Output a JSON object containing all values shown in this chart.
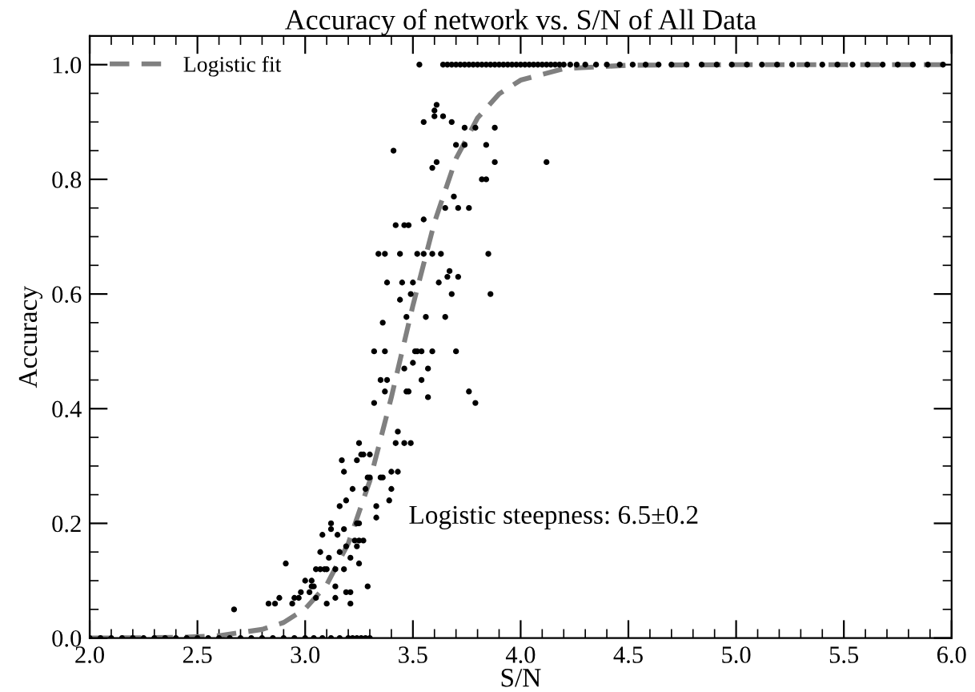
{
  "chart_data": {
    "type": "scatter",
    "title": "Accuracy of network vs. S/N of All Data",
    "xlabel": "S/N",
    "ylabel": "Accuracy",
    "xlim": [
      2.0,
      6.0
    ],
    "ylim": [
      0.0,
      1.05
    ],
    "xticks": [
      {
        "value": 2.0,
        "label": "2.0"
      },
      {
        "value": 2.5,
        "label": "2.5"
      },
      {
        "value": 3.0,
        "label": "3.0"
      },
      {
        "value": 3.5,
        "label": "3.5"
      },
      {
        "value": 4.0,
        "label": "4.0"
      },
      {
        "value": 4.5,
        "label": "4.5"
      },
      {
        "value": 5.0,
        "label": "5.0"
      },
      {
        "value": 5.5,
        "label": "5.5"
      },
      {
        "value": 6.0,
        "label": "6.0"
      }
    ],
    "yticks": [
      {
        "value": 0.0,
        "label": "0.0"
      },
      {
        "value": 0.2,
        "label": "0.2"
      },
      {
        "value": 0.4,
        "label": "0.4"
      },
      {
        "value": 0.6,
        "label": "0.6"
      },
      {
        "value": 0.8,
        "label": "0.8"
      },
      {
        "value": 1.0,
        "label": "1.0"
      }
    ],
    "grid": false,
    "legend": "top left",
    "annotations": [
      "Logistic steepness: 6.5±0.2"
    ],
    "series": [
      {
        "color": "#000000",
        "marker": "circle",
        "x": [
          3.53,
          3.61,
          3.6,
          3.6,
          3.64,
          3.55,
          3.68,
          3.74,
          3.79,
          3.88,
          3.7,
          3.74,
          3.84,
          3.41,
          3.61,
          3.59,
          3.88,
          4.12,
          3.82,
          3.84,
          3.69,
          3.65,
          3.71,
          3.76,
          3.55,
          3.42,
          3.46,
          3.48,
          3.34,
          3.37,
          3.44,
          3.52,
          3.55,
          3.59,
          3.63,
          3.85,
          3.67,
          3.66,
          3.71,
          3.38,
          3.45,
          3.5,
          3.62,
          3.49,
          3.68,
          3.86,
          3.44,
          3.36,
          3.47,
          3.56,
          3.65,
          3.32,
          3.37,
          3.51,
          3.52,
          3.54,
          3.59,
          3.7,
          3.5,
          3.57,
          3.35,
          3.38,
          3.46,
          3.54,
          3.47,
          3.48,
          3.76,
          3.37,
          3.57,
          3.32,
          3.79,
          3.43,
          3.42,
          3.46,
          3.49,
          3.25,
          3.27,
          3.26,
          3.3,
          3.24,
          3.4,
          3.43,
          3.29,
          3.3,
          3.35,
          3.36,
          3.22,
          3.4,
          3.28,
          3.33,
          3.39,
          3.33,
          3.24,
          3.25,
          3.23,
          3.25,
          3.27,
          3.24,
          3.21,
          3.25,
          3.21,
          3.29,
          3.21,
          2.67,
          2.83,
          2.86,
          2.88,
          2.91,
          2.94,
          2.95,
          2.97,
          2.98,
          3.0,
          3.02,
          3.03,
          3.03,
          3.04,
          3.05,
          3.05,
          3.07,
          3.07,
          3.09,
          3.1,
          3.08,
          3.1,
          3.11,
          3.12,
          3.12,
          3.14,
          3.14,
          3.14,
          3.15,
          3.16,
          3.16,
          3.17,
          3.18,
          3.18,
          3.18,
          3.19,
          3.19,
          3.19,
          3.64,
          3.66,
          3.68,
          3.7,
          3.72,
          3.74,
          3.76,
          3.78,
          3.8,
          3.82,
          3.84,
          3.86,
          3.88,
          3.9,
          3.92,
          3.94,
          3.96,
          3.98,
          4.0,
          4.02,
          4.04,
          4.06,
          4.08,
          4.1,
          4.12,
          4.14,
          4.16,
          4.18,
          4.2,
          4.23,
          4.26,
          4.3,
          4.35,
          4.4,
          4.46,
          4.52,
          4.58,
          4.64,
          4.7,
          4.77,
          4.84,
          4.91,
          4.98,
          5.05,
          5.12,
          5.19,
          5.26,
          5.33,
          5.4,
          5.47,
          5.54,
          5.61,
          5.68,
          5.75,
          5.82,
          5.89,
          5.96,
          2.0,
          2.05,
          2.1,
          2.15,
          2.2,
          2.25,
          2.3,
          2.35,
          2.4,
          2.45,
          2.5,
          2.55,
          2.6,
          2.65,
          2.7,
          2.75,
          2.8,
          2.85,
          2.9,
          2.95,
          3.0,
          3.04,
          3.08,
          3.12,
          3.16,
          3.2,
          3.22,
          3.24,
          3.26,
          3.28,
          3.3
        ],
        "values": [
          1.0,
          0.93,
          0.92,
          0.91,
          0.91,
          0.9,
          0.9,
          0.89,
          0.89,
          0.89,
          0.86,
          0.86,
          0.86,
          0.85,
          0.83,
          0.82,
          0.83,
          0.83,
          0.8,
          0.8,
          0.77,
          0.75,
          0.75,
          0.75,
          0.73,
          0.72,
          0.72,
          0.72,
          0.67,
          0.67,
          0.67,
          0.67,
          0.67,
          0.67,
          0.67,
          0.67,
          0.64,
          0.63,
          0.63,
          0.62,
          0.62,
          0.62,
          0.62,
          0.6,
          0.6,
          0.6,
          0.59,
          0.55,
          0.56,
          0.56,
          0.56,
          0.5,
          0.5,
          0.5,
          0.5,
          0.5,
          0.5,
          0.5,
          0.48,
          0.47,
          0.45,
          0.45,
          0.47,
          0.45,
          0.43,
          0.43,
          0.43,
          0.43,
          0.42,
          0.41,
          0.41,
          0.36,
          0.34,
          0.34,
          0.34,
          0.34,
          0.32,
          0.32,
          0.32,
          0.31,
          0.29,
          0.29,
          0.28,
          0.28,
          0.28,
          0.28,
          0.26,
          0.26,
          0.26,
          0.23,
          0.24,
          0.21,
          0.2,
          0.2,
          0.17,
          0.17,
          0.17,
          0.16,
          0.14,
          0.13,
          0.08,
          0.09,
          0.06,
          0.05,
          0.06,
          0.06,
          0.07,
          0.13,
          0.06,
          0.07,
          0.07,
          0.08,
          0.1,
          0.08,
          0.09,
          0.1,
          0.09,
          0.07,
          0.12,
          0.15,
          0.12,
          0.12,
          0.12,
          0.18,
          0.06,
          0.14,
          0.2,
          0.19,
          0.12,
          0.09,
          0.07,
          0.18,
          0.15,
          0.23,
          0.31,
          0.29,
          0.19,
          0.12,
          0.24,
          0.08,
          0.16,
          1,
          1,
          1,
          1,
          1,
          1,
          1,
          1,
          1,
          1,
          1,
          1,
          1,
          1,
          1,
          1,
          1,
          1,
          1,
          1,
          1,
          1,
          1,
          1,
          1,
          1,
          1,
          1,
          1,
          1,
          1,
          1,
          1,
          1,
          1,
          1,
          1,
          1,
          1,
          1,
          1,
          1,
          1,
          1,
          1,
          1,
          1,
          1,
          1,
          1,
          1,
          1,
          1,
          1,
          1,
          1,
          1,
          0,
          0,
          0,
          0,
          0,
          0,
          0,
          0,
          0,
          0,
          0,
          0,
          0,
          0,
          0,
          0,
          0,
          0,
          0,
          0,
          0,
          0,
          0,
          0,
          0,
          0,
          0,
          0,
          0,
          0,
          0
        ]
      },
      {
        "type": "line",
        "name": "Logistic fit",
        "color": "#808080",
        "line_style": "dashed",
        "marker": "none",
        "x": [
          2.0,
          2.4,
          2.6,
          2.8,
          2.9,
          3.0,
          3.1,
          3.2,
          3.3,
          3.4,
          3.5,
          3.6,
          3.7,
          3.8,
          3.9,
          4.0,
          4.2,
          4.5,
          5.0,
          6.0
        ],
        "values": [
          0.0,
          0.001,
          0.004,
          0.015,
          0.027,
          0.051,
          0.093,
          0.165,
          0.274,
          0.42,
          0.58,
          0.725,
          0.836,
          0.907,
          0.949,
          0.973,
          0.993,
          0.999,
          1.0,
          1.0
        ]
      }
    ]
  }
}
